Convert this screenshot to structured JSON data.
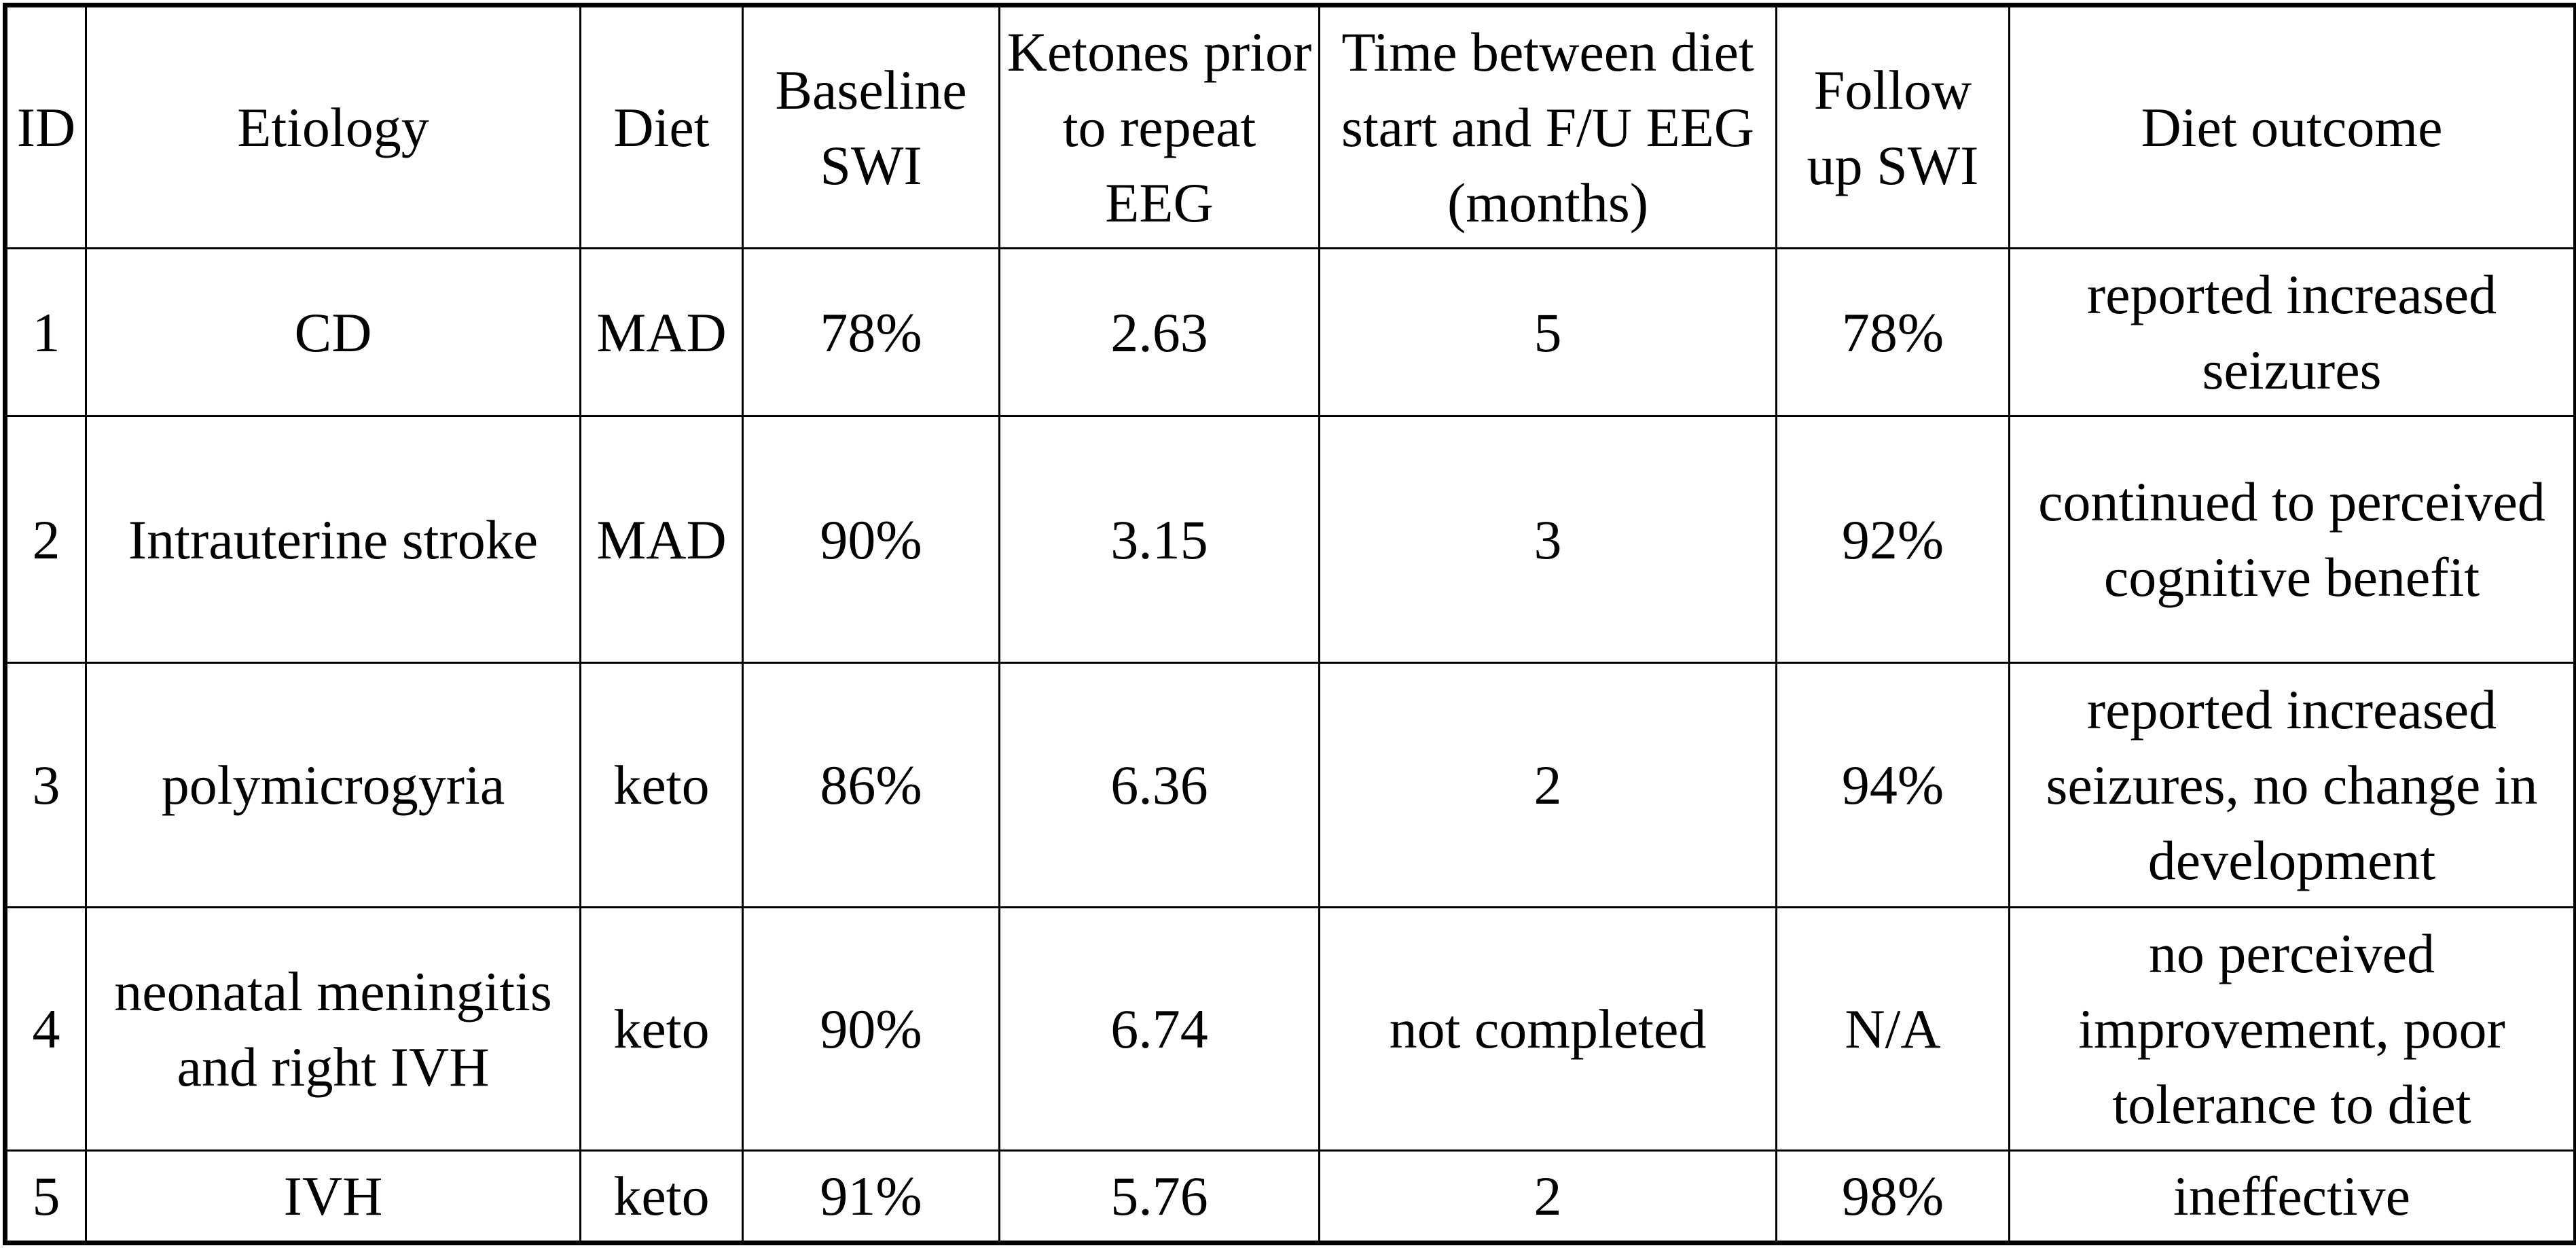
{
  "table": {
    "header": [
      "ID",
      "Etiology",
      "Diet",
      "Baseline SWI",
      "Ketones prior to repeat EEG",
      "Time between diet start and F/U EEG (months)",
      "Follow up SWI",
      "Diet outcome"
    ],
    "rows": [
      [
        "1",
        "CD",
        "MAD",
        "78%",
        "2.63",
        "5",
        "78%",
        "reported increased seizures"
      ],
      [
        "2",
        "Intrauterine stroke",
        "MAD",
        "90%",
        "3.15",
        "3",
        "92%",
        "continued to perceived cognitive benefit"
      ],
      [
        "3",
        "polymicrogyria",
        "keto",
        "86%",
        "6.36",
        "2",
        "94%",
        "reported increased seizures, no change in development"
      ],
      [
        "4",
        "neonatal meningitis and right IVH",
        "keto",
        "90%",
        "6.74",
        "not completed",
        "N/A",
        "no perceived improvement, poor tolerance to diet"
      ],
      [
        "5",
        "IVH",
        "keto",
        "91%",
        "5.76",
        "2",
        "98%",
        "ineffective"
      ]
    ]
  }
}
